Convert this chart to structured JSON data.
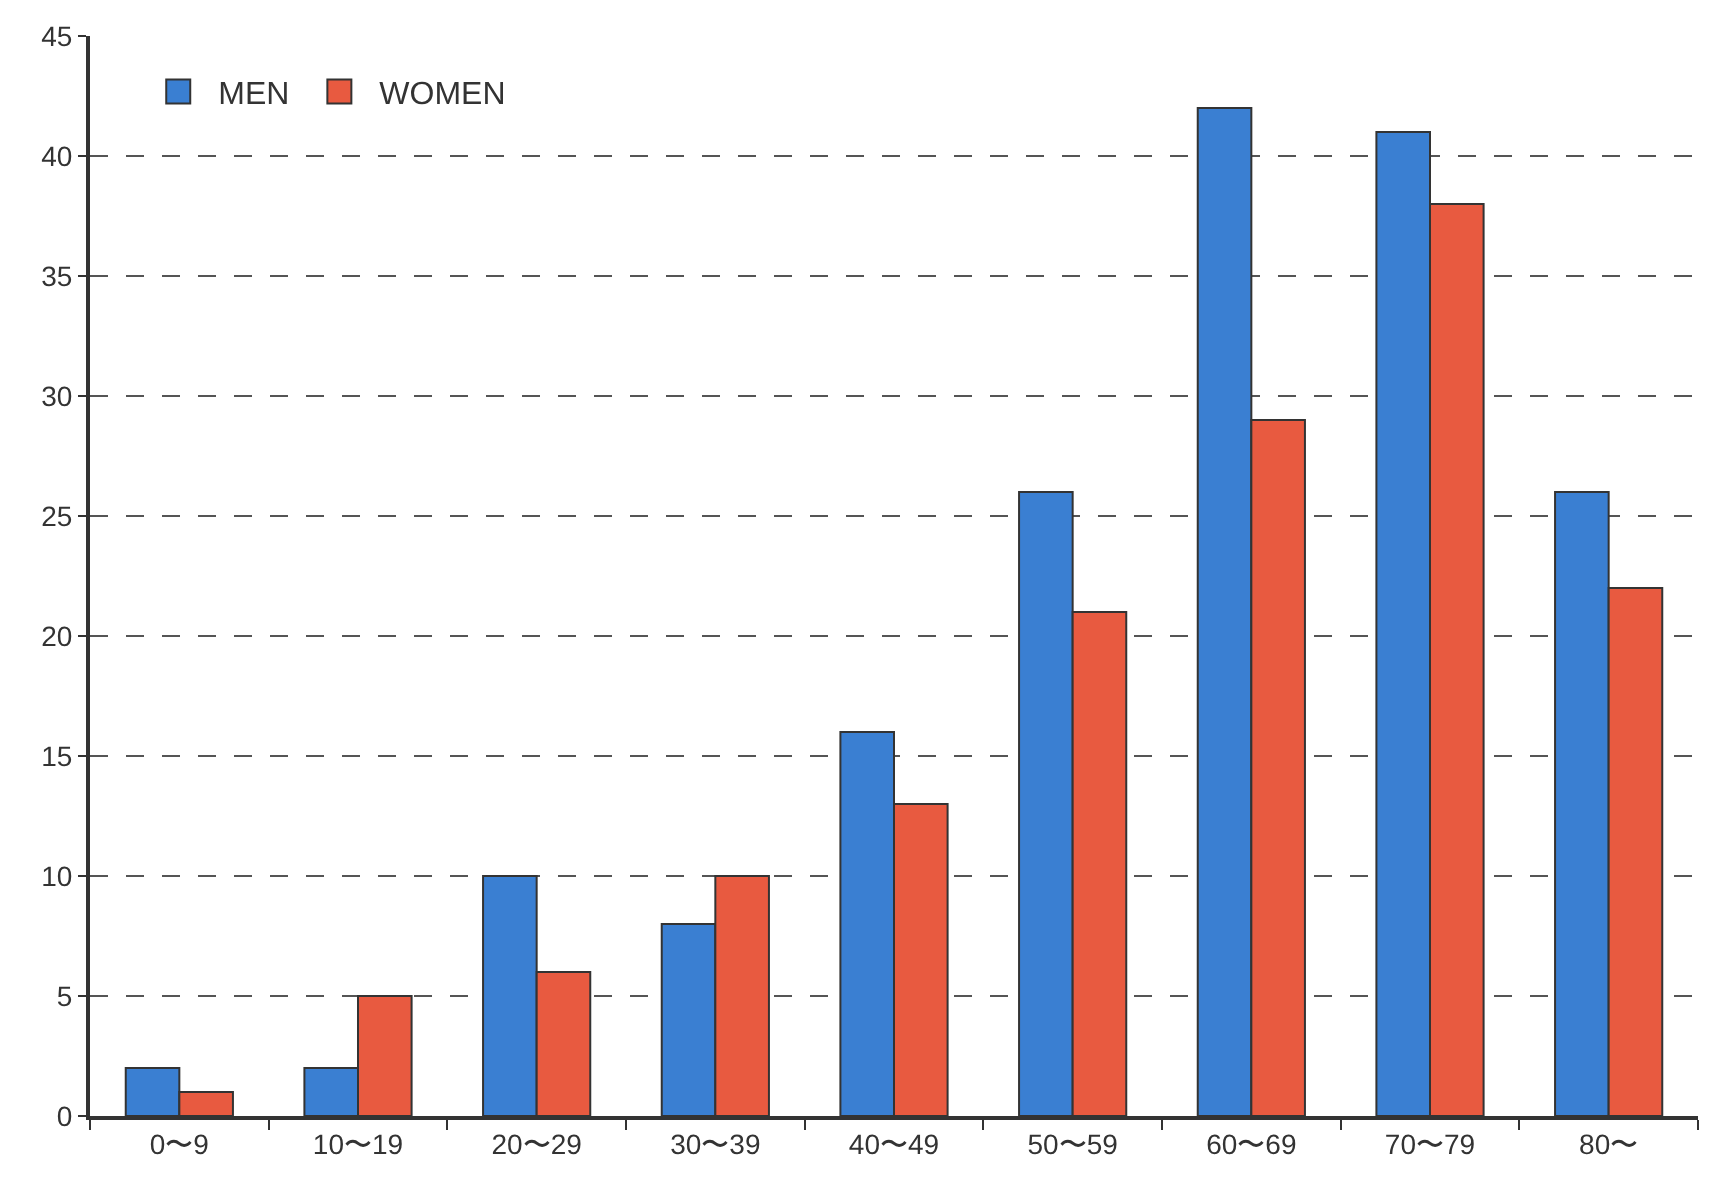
{
  "chart_data": {
    "type": "bar",
    "categories": [
      "0〜9",
      "10〜19",
      "20〜29",
      "30〜39",
      "40〜49",
      "50〜59",
      "60〜69",
      "70〜79",
      "80〜"
    ],
    "series": [
      {
        "name": "MEN",
        "color": "#3a7fd2",
        "values": [
          2,
          2,
          10,
          8,
          16,
          26,
          42,
          41,
          26
        ]
      },
      {
        "name": "WOMEN",
        "color": "#e85a40",
        "values": [
          1,
          5,
          6,
          10,
          13,
          21,
          29,
          38,
          22
        ]
      }
    ],
    "ylim": [
      0,
      45
    ],
    "yticks": [
      0,
      5,
      10,
      15,
      20,
      25,
      30,
      35,
      40,
      45
    ],
    "grid": "y",
    "legend": "top left"
  }
}
